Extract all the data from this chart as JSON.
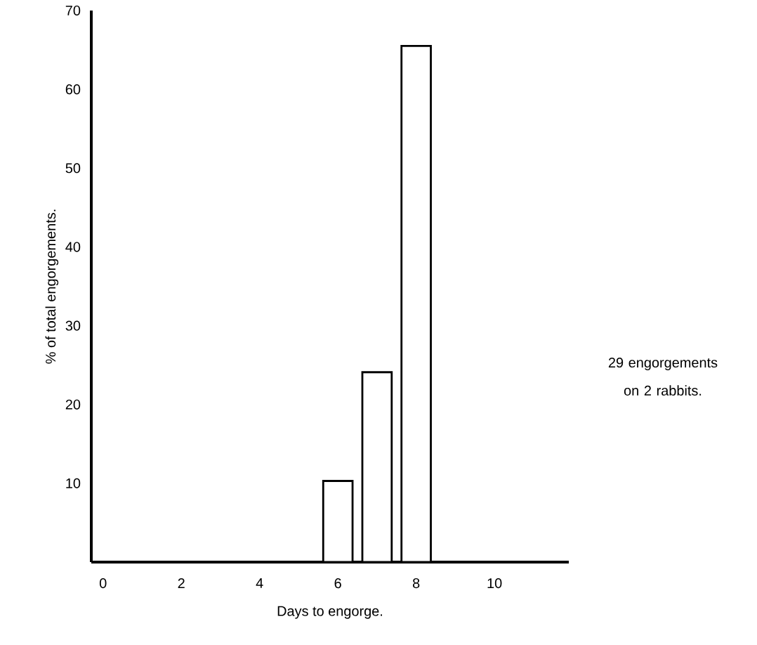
{
  "chart_data": {
    "type": "bar",
    "xlabel": "Days to engorge.",
    "ylabel": "% of total engorgements.",
    "x": [
      6,
      7,
      8
    ],
    "values": [
      10.3,
      24.1,
      65.5
    ],
    "color": "#ffffff",
    "xlim": [
      -0.3,
      11.9
    ],
    "ylim": [
      0,
      70
    ],
    "xticks": [
      0,
      2,
      4,
      6,
      8,
      10
    ],
    "yticks": [
      10,
      20,
      30,
      40,
      50,
      60,
      70
    ],
    "annotations": [
      "29 engorgements on 2 rabbits."
    ]
  }
}
